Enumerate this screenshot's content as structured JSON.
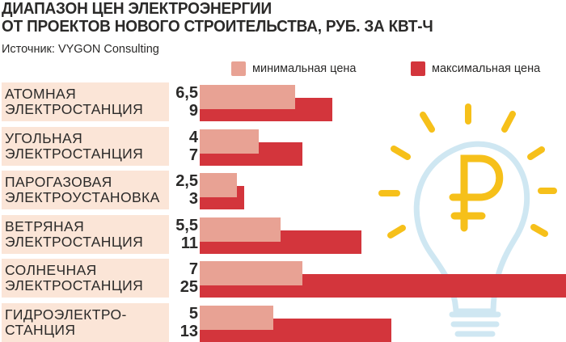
{
  "title_lines": [
    "ДИАПАЗОН ЦЕН ЭЛЕКТРОЭНЕРГИИ",
    "ОТ ПРОЕКТОВ НОВОГО СТРОИТЕЛЬСТВА, РУБ. ЗА КВТ-Ч"
  ],
  "source": "Источник: VYGON Consulting",
  "colors": {
    "min": "#e8a294",
    "max": "#d3353c",
    "category_bg": "#fbe5d7",
    "bulb_rays": "#f6c01a",
    "bulb_outline": "#cfe7f2",
    "ruble": "#f6c01a"
  },
  "chart_data": {
    "type": "bar",
    "orientation": "horizontal",
    "categories": [
      [
        "Атомная",
        "электростанция"
      ],
      [
        "Угольная",
        "электростанция"
      ],
      [
        "Парогазовая",
        "электроустановка"
      ],
      [
        "Ветряная",
        "электростанция"
      ],
      [
        "Солнечная",
        "электростанция"
      ],
      [
        "Гидроэлектро-",
        "станция"
      ]
    ],
    "series": [
      {
        "name": "минимальная цена",
        "values": [
          6.5,
          4,
          2.5,
          5.5,
          7,
          5
        ],
        "labels": [
          "6,5",
          "4",
          "2,5",
          "5,5",
          "7",
          "5"
        ]
      },
      {
        "name": "максимальная цена",
        "values": [
          9,
          7,
          3,
          11,
          25,
          13
        ],
        "labels": [
          "9",
          "7",
          "3",
          "11",
          "25",
          "13"
        ]
      }
    ],
    "xlim": [
      0,
      25
    ]
  }
}
